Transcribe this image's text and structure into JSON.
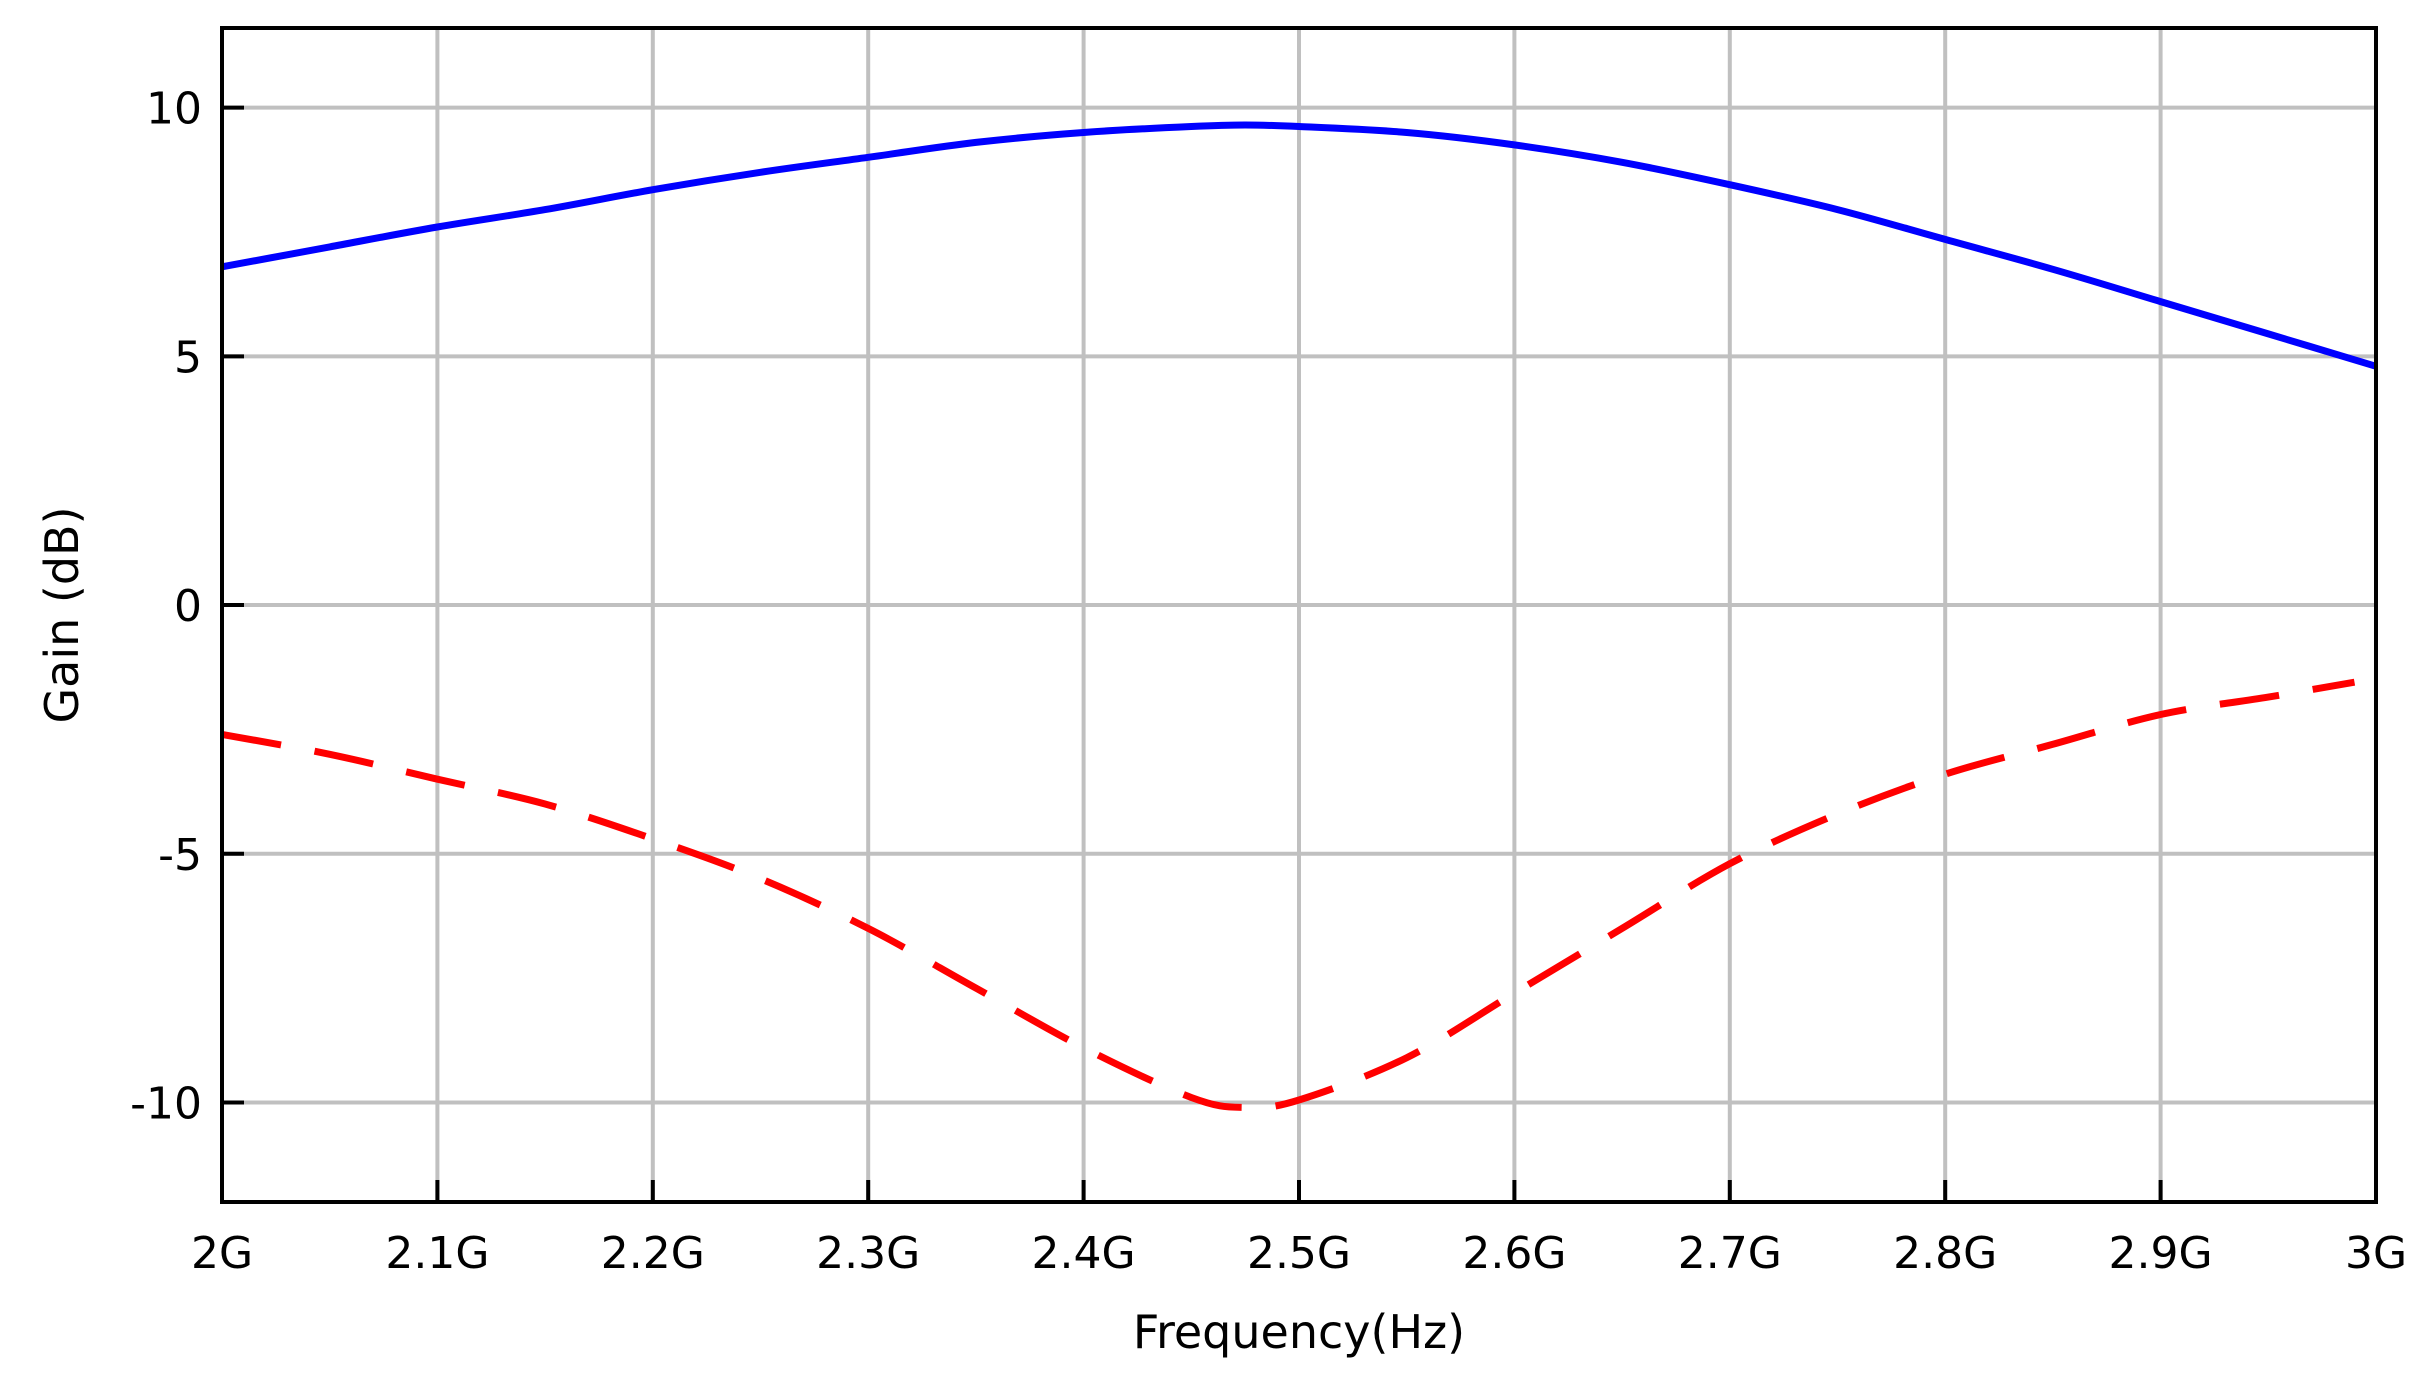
{
  "chart_data": {
    "type": "line",
    "title": "",
    "xlabel": "Frequency(Hz)",
    "ylabel": "Gain (dB)",
    "xlim": [
      2.0,
      3.0
    ],
    "ylim": [
      -12,
      11.6
    ],
    "grid": true,
    "legend": "none",
    "x_ticks": [
      {
        "value": 2.0,
        "label": "2G"
      },
      {
        "value": 2.1,
        "label": "2.1G"
      },
      {
        "value": 2.2,
        "label": "2.2G"
      },
      {
        "value": 2.3,
        "label": "2.3G"
      },
      {
        "value": 2.4,
        "label": "2.4G"
      },
      {
        "value": 2.5,
        "label": "2.5G"
      },
      {
        "value": 2.6,
        "label": "2.6G"
      },
      {
        "value": 2.7,
        "label": "2.7G"
      },
      {
        "value": 2.8,
        "label": "2.8G"
      },
      {
        "value": 2.9,
        "label": "2.9G"
      },
      {
        "value": 3.0,
        "label": "3G"
      }
    ],
    "y_ticks": [
      {
        "value": 10,
        "label": "10"
      },
      {
        "value": 5,
        "label": "5"
      },
      {
        "value": 0,
        "label": "0"
      },
      {
        "value": -5,
        "label": "-5"
      },
      {
        "value": -10,
        "label": "-10"
      }
    ],
    "series": [
      {
        "color": "#0000ff",
        "style": "solid",
        "x": [
          2.0,
          2.05,
          2.1,
          2.15,
          2.2,
          2.25,
          2.3,
          2.35,
          2.4,
          2.45,
          2.475,
          2.5,
          2.55,
          2.6,
          2.65,
          2.7,
          2.75,
          2.8,
          2.85,
          2.9,
          2.95,
          3.0
        ],
        "y": [
          6.8,
          7.2,
          7.6,
          7.95,
          8.35,
          8.7,
          9.0,
          9.3,
          9.5,
          9.62,
          9.65,
          9.62,
          9.5,
          9.25,
          8.9,
          8.45,
          7.95,
          7.35,
          6.75,
          6.1,
          5.45,
          4.8
        ]
      },
      {
        "color": "#ff0000",
        "style": "dashed",
        "x": [
          2.0,
          2.05,
          2.1,
          2.15,
          2.2,
          2.25,
          2.3,
          2.35,
          2.4,
          2.45,
          2.475,
          2.5,
          2.55,
          2.6,
          2.65,
          2.7,
          2.75,
          2.8,
          2.85,
          2.9,
          2.95,
          2.99
        ],
        "y": [
          -2.6,
          -3.0,
          -3.5,
          -4.0,
          -4.7,
          -5.5,
          -6.5,
          -7.7,
          -8.9,
          -9.9,
          -10.1,
          -9.95,
          -9.1,
          -7.8,
          -6.5,
          -5.2,
          -4.2,
          -3.4,
          -2.8,
          -2.2,
          -1.85,
          -1.55
        ]
      }
    ]
  }
}
